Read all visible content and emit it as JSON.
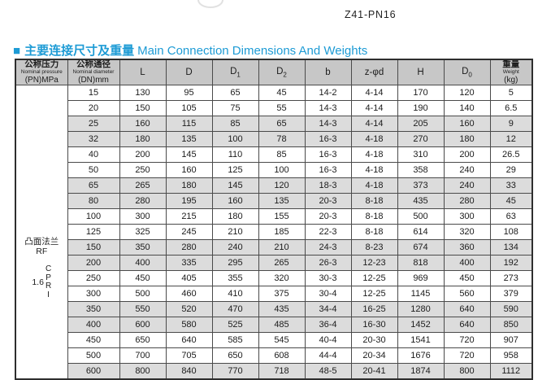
{
  "page": {
    "model_label": "Z41-PN16"
  },
  "section": {
    "bullet": "■",
    "title_zh": "主要连接尺寸及重量",
    "title_en": "Main Connection Dimensions And Weights",
    "accent_color": "#1d9bd5"
  },
  "table": {
    "header": {
      "col_pressure": {
        "zh": "公称压力",
        "en": "Nominal pressure",
        "unit": "(PN)MPa"
      },
      "col_diameter": {
        "zh": "公称通径",
        "en": "Nominal diameter",
        "unit": "(DN)mm"
      },
      "dim_cols": [
        {
          "label": "L"
        },
        {
          "label": "D"
        },
        {
          "label": "D",
          "sub": "1"
        },
        {
          "label": "D",
          "sub": "2"
        },
        {
          "label": "b"
        },
        {
          "label": "z-φd"
        },
        {
          "label": "H"
        },
        {
          "label": "D",
          "sub": "0"
        }
      ],
      "col_weight": {
        "zh": "重量",
        "en": "Weight",
        "unit": "(kg)"
      }
    },
    "pressure_group": {
      "flange_zh": "凸面法兰",
      "flange_en": "RF",
      "rating": "1.6",
      "code_letters": [
        "C",
        "P",
        "R",
        "I"
      ]
    },
    "col_keys": [
      "dn",
      "l",
      "d",
      "d1",
      "d2",
      "b",
      "zd",
      "h",
      "d0",
      "weight"
    ],
    "rows": [
      {
        "shaded": false,
        "values": [
          "15",
          "130",
          "95",
          "65",
          "45",
          "14-2",
          "4-14",
          "170",
          "120",
          "5"
        ]
      },
      {
        "shaded": false,
        "values": [
          "20",
          "150",
          "105",
          "75",
          "55",
          "14-3",
          "4-14",
          "190",
          "140",
          "6.5"
        ]
      },
      {
        "shaded": true,
        "values": [
          "25",
          "160",
          "115",
          "85",
          "65",
          "14-3",
          "4-14",
          "205",
          "160",
          "9"
        ]
      },
      {
        "shaded": true,
        "values": [
          "32",
          "180",
          "135",
          "100",
          "78",
          "16-3",
          "4-18",
          "270",
          "180",
          "12"
        ]
      },
      {
        "shaded": false,
        "values": [
          "40",
          "200",
          "145",
          "110",
          "85",
          "16-3",
          "4-18",
          "310",
          "200",
          "26.5"
        ]
      },
      {
        "shaded": false,
        "values": [
          "50",
          "250",
          "160",
          "125",
          "100",
          "16-3",
          "4-18",
          "358",
          "240",
          "29"
        ]
      },
      {
        "shaded": true,
        "values": [
          "65",
          "265",
          "180",
          "145",
          "120",
          "18-3",
          "4-18",
          "373",
          "240",
          "33"
        ]
      },
      {
        "shaded": true,
        "values": [
          "80",
          "280",
          "195",
          "160",
          "135",
          "20-3",
          "8-18",
          "435",
          "280",
          "45"
        ]
      },
      {
        "shaded": false,
        "values": [
          "100",
          "300",
          "215",
          "180",
          "155",
          "20-3",
          "8-18",
          "500",
          "300",
          "63"
        ]
      },
      {
        "shaded": false,
        "values": [
          "125",
          "325",
          "245",
          "210",
          "185",
          "22-3",
          "8-18",
          "614",
          "320",
          "108"
        ]
      },
      {
        "shaded": true,
        "values": [
          "150",
          "350",
          "280",
          "240",
          "210",
          "24-3",
          "8-23",
          "674",
          "360",
          "134"
        ]
      },
      {
        "shaded": true,
        "values": [
          "200",
          "400",
          "335",
          "295",
          "265",
          "26-3",
          "12-23",
          "818",
          "400",
          "192"
        ]
      },
      {
        "shaded": false,
        "values": [
          "250",
          "450",
          "405",
          "355",
          "320",
          "30-3",
          "12-25",
          "969",
          "450",
          "273"
        ]
      },
      {
        "shaded": false,
        "values": [
          "300",
          "500",
          "460",
          "410",
          "375",
          "30-4",
          "12-25",
          "1145",
          "560",
          "379"
        ]
      },
      {
        "shaded": true,
        "values": [
          "350",
          "550",
          "520",
          "470",
          "435",
          "34-4",
          "16-25",
          "1280",
          "640",
          "590"
        ]
      },
      {
        "shaded": true,
        "values": [
          "400",
          "600",
          "580",
          "525",
          "485",
          "36-4",
          "16-30",
          "1452",
          "640",
          "850"
        ]
      },
      {
        "shaded": false,
        "values": [
          "450",
          "650",
          "640",
          "585",
          "545",
          "40-4",
          "20-30",
          "1541",
          "720",
          "907"
        ]
      },
      {
        "shaded": false,
        "values": [
          "500",
          "700",
          "705",
          "650",
          "608",
          "44-4",
          "20-34",
          "1676",
          "720",
          "958"
        ]
      },
      {
        "shaded": true,
        "values": [
          "600",
          "800",
          "840",
          "770",
          "718",
          "48-5",
          "20-41",
          "1874",
          "800",
          "1112"
        ]
      }
    ]
  }
}
